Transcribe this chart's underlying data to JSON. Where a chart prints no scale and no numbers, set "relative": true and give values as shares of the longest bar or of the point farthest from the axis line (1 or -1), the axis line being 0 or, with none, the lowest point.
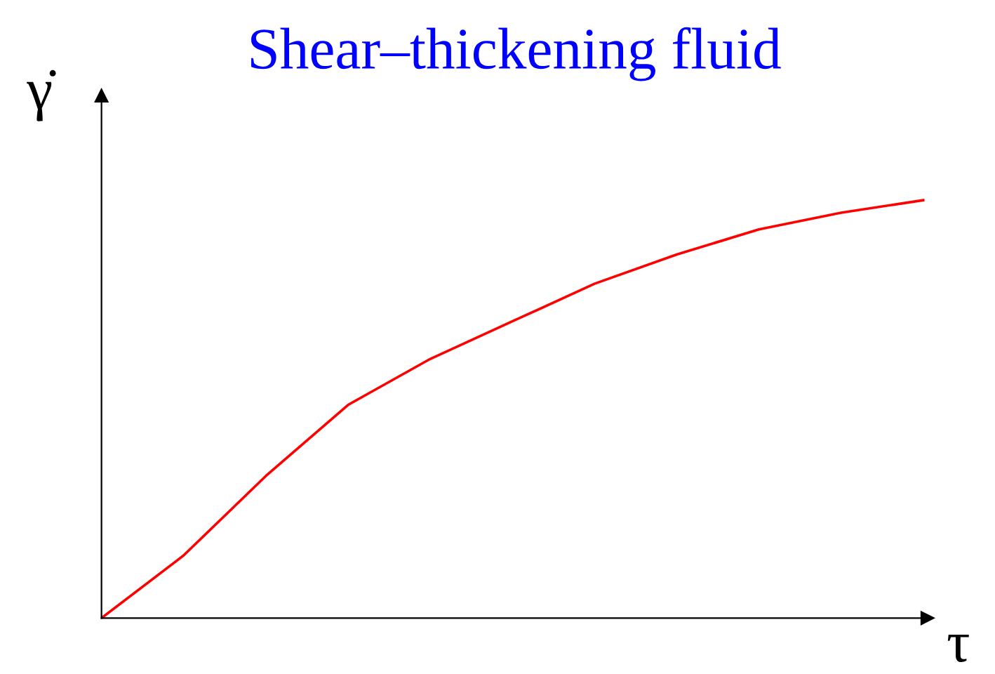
{
  "chart_data": {
    "type": "line",
    "title": "Shear–thickening fluid",
    "xlabel": "τ",
    "ylabel": "γ̇",
    "relative": true,
    "categories": [
      null,
      null,
      null,
      null,
      null,
      null,
      null,
      null,
      null,
      null,
      null
    ],
    "series": [
      {
        "color": "#ff0000",
        "values": [
          0,
          0.15,
          0.34,
          0.51,
          0.62,
          0.71,
          0.8,
          0.87,
          0.93,
          0.97,
          1
        ]
      }
    ],
    "legend": false,
    "grid": false,
    "marker": "none",
    "line_style": "solid"
  }
}
